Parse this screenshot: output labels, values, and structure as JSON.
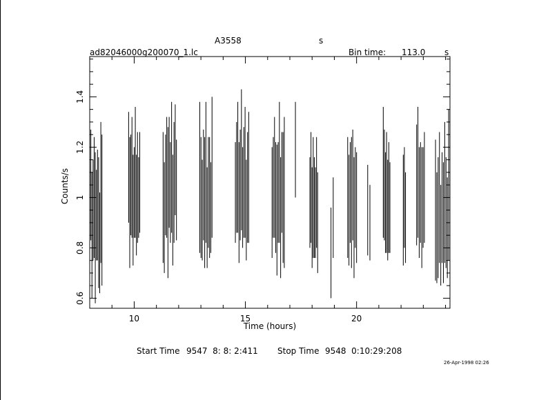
{
  "header": {
    "object": "A3558",
    "object_unit": "s",
    "filename": "ad82046000g200070_1.lc",
    "bin_time_label": "Bin time:",
    "bin_time_value": "113.0",
    "bin_time_unit": "s"
  },
  "footer": {
    "start_label": "Start Time",
    "start_value": "9547  8: 8: 2:411",
    "stop_label": "Stop Time",
    "stop_value": "9548  0:10:29:208",
    "date_stamp": "26-Apr-1998 02:26"
  },
  "chart_data": {
    "type": "scatter",
    "title": "A3558",
    "xlabel": "Time (hours)",
    "ylabel": "Counts/s",
    "xlim": [
      8.0,
      24.2
    ],
    "ylim": [
      0.56,
      1.56
    ],
    "x_ticks": [
      10,
      15,
      20
    ],
    "y_ticks": [
      0.6,
      0.8,
      1,
      1.2,
      1.4
    ],
    "grid": false,
    "series": [
      {
        "style": "error-bars",
        "segments": [
          [
            8.0,
            8.55,
            [
              [
                0.92,
                0.28
              ],
              [
                1.05,
                0.22
              ],
              [
                0.85,
                0.25
              ],
              [
                0.95,
                0.2
              ],
              [
                1.0,
                0.24
              ],
              [
                0.88,
                0.3
              ],
              [
                0.93,
                0.18
              ],
              [
                0.97,
                0.22
              ],
              [
                0.9,
                0.26
              ],
              [
                0.82,
                0.2
              ],
              [
                1.02,
                0.28
              ],
              [
                0.95,
                0.3
              ]
            ]
          ],
          [
            9.75,
            10.25,
            [
              [
                1.12,
                0.22
              ],
              [
                0.98,
                0.26
              ],
              [
                1.05,
                0.2
              ],
              [
                1.08,
                0.24
              ],
              [
                0.95,
                0.22
              ],
              [
                1.02,
                0.18
              ],
              [
                1.1,
                0.26
              ],
              [
                0.97,
                0.2
              ],
              [
                1.04,
                0.22
              ],
              [
                1.0,
                0.16
              ],
              [
                1.06,
                0.2
              ]
            ]
          ],
          [
            11.3,
            11.9,
            [
              [
                1.0,
                0.26
              ],
              [
                0.92,
                0.22
              ],
              [
                1.05,
                0.2
              ],
              [
                1.08,
                0.24
              ],
              [
                0.98,
                0.3
              ],
              [
                1.1,
                0.22
              ],
              [
                1.02,
                0.2
              ],
              [
                1.12,
                0.26
              ],
              [
                0.95,
                0.22
              ],
              [
                1.06,
                0.24
              ],
              [
                1.15,
                0.22
              ],
              [
                1.03,
                0.2
              ]
            ]
          ],
          [
            12.95,
            13.5,
            [
              [
                1.08,
                0.3
              ],
              [
                1.0,
                0.24
              ],
              [
                0.95,
                0.2
              ],
              [
                1.05,
                0.22
              ],
              [
                0.98,
                0.26
              ],
              [
                1.1,
                0.28
              ],
              [
                0.92,
                0.2
              ],
              [
                1.02,
                0.22
              ],
              [
                1.0,
                0.24
              ],
              [
                0.96,
                0.18
              ],
              [
                1.12,
                0.28
              ]
            ]
          ],
          [
            14.55,
            15.15,
            [
              [
                1.02,
                0.2
              ],
              [
                1.08,
                0.22
              ],
              [
                1.12,
                0.26
              ],
              [
                0.98,
                0.24
              ],
              [
                1.05,
                0.22
              ],
              [
                1.15,
                0.28
              ],
              [
                1.0,
                0.2
              ],
              [
                1.06,
                0.22
              ],
              [
                1.1,
                0.26
              ],
              [
                0.95,
                0.2
              ],
              [
                1.04,
                0.22
              ],
              [
                1.08,
                0.26
              ]
            ]
          ],
          [
            16.2,
            16.75,
            [
              [
                0.98,
                0.22
              ],
              [
                1.04,
                0.2
              ],
              [
                1.08,
                0.24
              ],
              [
                1.0,
                0.22
              ],
              [
                0.95,
                0.26
              ],
              [
                1.02,
                0.2
              ],
              [
                1.1,
                0.28
              ],
              [
                0.92,
                0.24
              ],
              [
                1.06,
                0.2
              ],
              [
                1.0,
                0.26
              ],
              [
                1.02,
                0.3
              ]
            ]
          ],
          [
            17.25,
            17.3,
            [
              [
                1.19,
                0.19
              ]
            ]
          ],
          [
            17.9,
            18.25,
            [
              [
                0.98,
                0.18
              ],
              [
                1.04,
                0.22
              ],
              [
                0.92,
                0.2
              ],
              [
                1.0,
                0.24
              ],
              [
                0.96,
                0.2
              ],
              [
                0.94,
                0.18
              ],
              [
                1.02,
                0.22
              ],
              [
                0.9,
                0.2
              ]
            ]
          ],
          [
            18.85,
            18.95,
            [
              [
                0.78,
                0.18
              ],
              [
                0.92,
                0.16
              ]
            ]
          ],
          [
            19.6,
            20.0,
            [
              [
                1.0,
                0.24
              ],
              [
                0.95,
                0.22
              ],
              [
                1.02,
                0.2
              ],
              [
                0.98,
                0.26
              ],
              [
                1.05,
                0.22
              ],
              [
                0.92,
                0.24
              ],
              [
                1.0,
                0.2
              ],
              [
                0.96,
                0.22
              ]
            ]
          ],
          [
            20.5,
            20.6,
            [
              [
                0.95,
                0.18
              ],
              [
                0.9,
                0.15
              ]
            ]
          ],
          [
            21.2,
            21.5,
            [
              [
                1.1,
                0.26
              ],
              [
                1.05,
                0.22
              ],
              [
                0.98,
                0.2
              ],
              [
                1.02,
                0.24
              ],
              [
                0.95,
                0.2
              ],
              [
                1.0,
                0.22
              ],
              [
                0.96,
                0.18
              ]
            ]
          ],
          [
            22.1,
            22.2,
            [
              [
                0.95,
                0.22
              ],
              [
                1.0,
                0.2
              ],
              [
                0.92,
                0.18
              ]
            ]
          ],
          [
            22.7,
            23.05,
            [
              [
                1.05,
                0.24
              ],
              [
                1.1,
                0.26
              ],
              [
                0.98,
                0.22
              ],
              [
                1.02,
                0.2
              ],
              [
                0.96,
                0.24
              ],
              [
                1.0,
                0.2
              ],
              [
                1.04,
                0.22
              ]
            ]
          ],
          [
            23.55,
            24.2,
            [
              [
                0.95,
                0.28
              ],
              [
                0.88,
                0.22
              ],
              [
                0.92,
                0.24
              ],
              [
                1.0,
                0.26
              ],
              [
                0.85,
                0.2
              ],
              [
                0.96,
                0.22
              ],
              [
                0.9,
                0.24
              ],
              [
                1.02,
                0.28
              ],
              [
                0.94,
                0.22
              ],
              [
                0.88,
                0.2
              ],
              [
                1.05,
                0.3
              ],
              [
                0.98,
                0.24
              ]
            ]
          ]
        ]
      }
    ]
  }
}
